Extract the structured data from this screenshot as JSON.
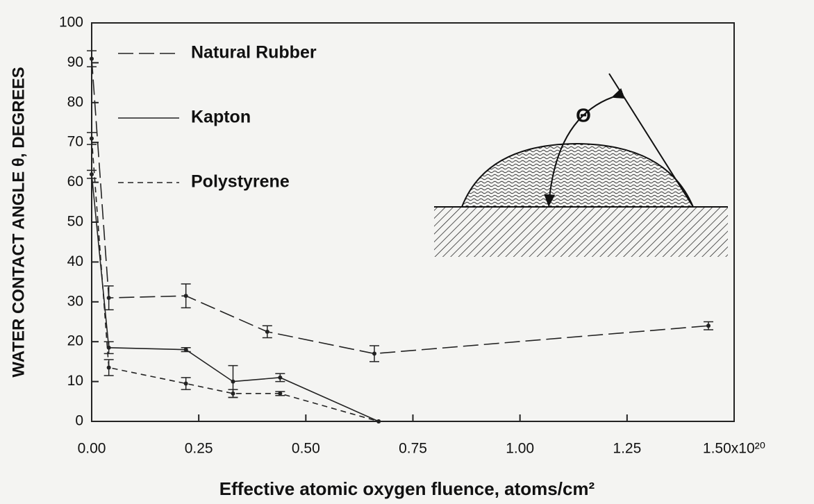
{
  "chart_data": {
    "type": "line",
    "xlabel": "Effective atomic oxygen fluence, atoms/cm²",
    "ylabel": "WATER CONTACT ANGLE θ, DEGREES",
    "annotations": [
      "Θ"
    ],
    "xlim": [
      0,
      1.5
    ],
    "ylim": [
      0,
      100
    ],
    "xticks": [
      {
        "value": 0,
        "label": "0.00"
      },
      {
        "value": 0.25,
        "label": "0.25"
      },
      {
        "value": 0.5,
        "label": "0.50"
      },
      {
        "value": 0.75,
        "label": "0.75"
      },
      {
        "value": 1,
        "label": "1.00"
      },
      {
        "value": 1.25,
        "label": "1.25"
      },
      {
        "value": 1.5,
        "label": "1.50x10²⁰"
      }
    ],
    "yticks": [
      0,
      10,
      20,
      30,
      40,
      50,
      60,
      70,
      80,
      90,
      100
    ],
    "series": [
      {
        "name": "Natural Rubber",
        "color": "#222",
        "dash": "long",
        "x": [
          0,
          0.04,
          0.22,
          0.41,
          0.66,
          1.44
        ],
        "values": [
          91,
          31,
          31.5,
          22.5,
          17,
          24
        ],
        "errors": [
          2,
          3,
          3,
          1.5,
          2,
          1
        ]
      },
      {
        "name": "Kapton",
        "color": "#222",
        "dash": "solid",
        "x": [
          0,
          0.04,
          0.22,
          0.33,
          0.44,
          0.67
        ],
        "values": [
          62,
          18.5,
          18,
          10,
          11,
          0
        ],
        "errors": [
          1,
          1.5,
          0.5,
          4,
          1,
          0
        ]
      },
      {
        "name": "Polystyrene",
        "color": "#222",
        "dash": "short",
        "x": [
          0,
          0.04,
          0.22,
          0.33,
          0.44,
          0.67
        ],
        "values": [
          71,
          13.5,
          9.5,
          7,
          7,
          0
        ],
        "errors": [
          1.5,
          2,
          1.5,
          1,
          0.5,
          0
        ]
      }
    ]
  }
}
